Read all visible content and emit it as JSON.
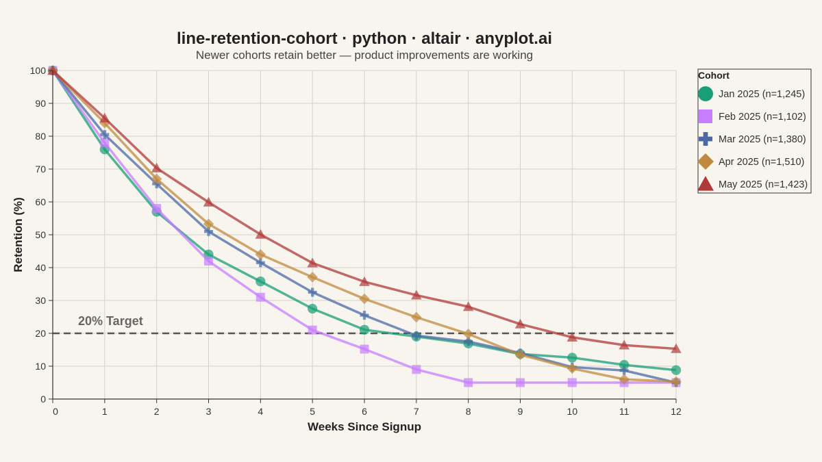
{
  "colors": {
    "background": "#f8f5ef",
    "grid": "#d3d0ca",
    "axis": "#333333",
    "reference_line": "#555555"
  },
  "chart_data": {
    "type": "line",
    "title": "line-retention-cohort · python · altair · anyplot.ai",
    "subtitle": "Newer cohorts retain better — product improvements are working",
    "xlabel": "Weeks Since Signup",
    "ylabel": "Retention (%)",
    "x": [
      0,
      1,
      2,
      3,
      4,
      5,
      6,
      7,
      8,
      9,
      10,
      11,
      12
    ],
    "xlim": [
      0,
      12
    ],
    "ylim": [
      0,
      100
    ],
    "yticks": [
      0,
      10,
      20,
      30,
      40,
      50,
      60,
      70,
      80,
      90,
      100
    ],
    "grid": true,
    "legend_title": "Cohort",
    "legend_position": "right",
    "reference_line": {
      "y": 20,
      "label": "20% Target",
      "style": "dashed"
    },
    "series": [
      {
        "name": "Jan 2025 (n=1,245)",
        "marker": "circle",
        "color": "#1a9e77",
        "values": [
          100,
          76,
          57,
          44,
          35.8,
          27.5,
          21.1,
          19,
          16.9,
          13.7,
          12.6,
          10.4,
          8.8
        ]
      },
      {
        "name": "Feb 2025 (n=1,102)",
        "marker": "square",
        "color": "#c77dff",
        "values": [
          100,
          78,
          58,
          42,
          31,
          21,
          15.2,
          9,
          5,
          5,
          5,
          5,
          5
        ]
      },
      {
        "name": "Mar 2025 (n=1,380)",
        "marker": "cross",
        "color": "#4a6aa5",
        "values": [
          100,
          80.5,
          65.5,
          51,
          41.5,
          32.5,
          25.5,
          19.3,
          17.5,
          14,
          9.7,
          8.7,
          5
        ]
      },
      {
        "name": "Apr 2025 (n=1,510)",
        "marker": "diamond",
        "color": "#c08a3e",
        "values": [
          100,
          84,
          67,
          53.3,
          44,
          37.1,
          30.5,
          24.9,
          19.8,
          13.5,
          9.3,
          6,
          5.3
        ]
      },
      {
        "name": "May 2025 (n=1,423)",
        "marker": "triangle",
        "color": "#b03a3a",
        "values": [
          100,
          85.5,
          70.3,
          59.9,
          50.1,
          41.4,
          35.7,
          31.6,
          28.1,
          22.8,
          18.8,
          16.4,
          15.3
        ]
      }
    ]
  }
}
